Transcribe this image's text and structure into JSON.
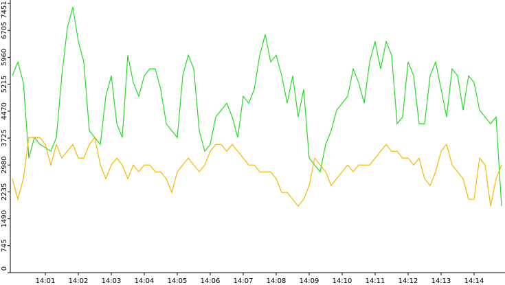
{
  "chart_data": {
    "type": "line",
    "categories": [
      null,
      null,
      null,
      null,
      null,
      null,
      "14:01",
      null,
      null,
      null,
      null,
      null,
      "14:02",
      null,
      null,
      null,
      null,
      null,
      "14:03",
      null,
      null,
      null,
      null,
      null,
      "14:04",
      null,
      null,
      null,
      null,
      null,
      "14:05",
      null,
      null,
      null,
      null,
      null,
      "14:06",
      null,
      null,
      null,
      null,
      null,
      "14:07",
      null,
      null,
      null,
      null,
      null,
      "14:08",
      null,
      null,
      null,
      null,
      null,
      "14:09",
      null,
      null,
      null,
      null,
      null,
      "14:10",
      null,
      null,
      null,
      null,
      null,
      "14:11",
      null,
      null,
      null,
      null,
      null,
      "14:12",
      null,
      null,
      null,
      null,
      null,
      "14:13",
      null,
      null,
      null,
      null,
      null,
      "14:14",
      null,
      null,
      null,
      null,
      null
    ],
    "series": [
      {
        "color": "#22dd22",
        "values": [
          5450,
          5830,
          5260,
          3170,
          3740,
          3550,
          3460,
          3360,
          3740,
          5450,
          6780,
          7350,
          6400,
          5830,
          3930,
          3740,
          3550,
          4880,
          5450,
          4120,
          3740,
          6020,
          5260,
          4880,
          5450,
          5640,
          5640,
          5070,
          4120,
          3930,
          3740,
          5450,
          6020,
          5640,
          3930,
          3360,
          3550,
          4310,
          4500,
          4690,
          4310,
          3740,
          4880,
          4690,
          5070,
          6020,
          6590,
          5830,
          6020,
          5450,
          4690,
          5450,
          4310,
          5070,
          3170,
          2980,
          2790,
          3550,
          3930,
          4500,
          4690,
          4880,
          5640,
          5260,
          4690,
          5830,
          6400,
          5640,
          6400,
          6020,
          4120,
          4310,
          5830,
          5450,
          4120,
          4120,
          5450,
          5830,
          5070,
          4310,
          5640,
          5450,
          4500,
          5450,
          5260,
          4500,
          4310,
          4120,
          4310,
          1840
        ]
      },
      {
        "color": "#f5b800",
        "values": [
          2600,
          2030,
          2600,
          3740,
          3740,
          3740,
          3550,
          2980,
          3550,
          3170,
          3360,
          3550,
          3170,
          3170,
          3550,
          3740,
          2980,
          2600,
          2980,
          3170,
          2980,
          2600,
          2980,
          2790,
          2980,
          2980,
          2790,
          2790,
          2600,
          2220,
          2790,
          2980,
          3170,
          2980,
          2790,
          2980,
          3360,
          3550,
          3550,
          3360,
          3550,
          3360,
          3170,
          2980,
          2980,
          2790,
          2790,
          2790,
          2600,
          2220,
          2220,
          2030,
          1840,
          2030,
          2410,
          3170,
          2980,
          2790,
          2410,
          2600,
          2790,
          2980,
          2790,
          2980,
          2980,
          2980,
          3170,
          3360,
          3550,
          3360,
          3360,
          3170,
          3170,
          2980,
          3170,
          2600,
          2410,
          2790,
          3360,
          3550,
          2980,
          2790,
          2600,
          2030,
          2030,
          3170,
          2980,
          1840,
          2600,
          2980
        ]
      }
    ],
    "ylim": [
      0,
      7451
    ],
    "yticks": [
      0,
      745,
      1490,
      2235,
      2980,
      3725,
      4470,
      5215,
      5960,
      6705,
      7451
    ]
  }
}
